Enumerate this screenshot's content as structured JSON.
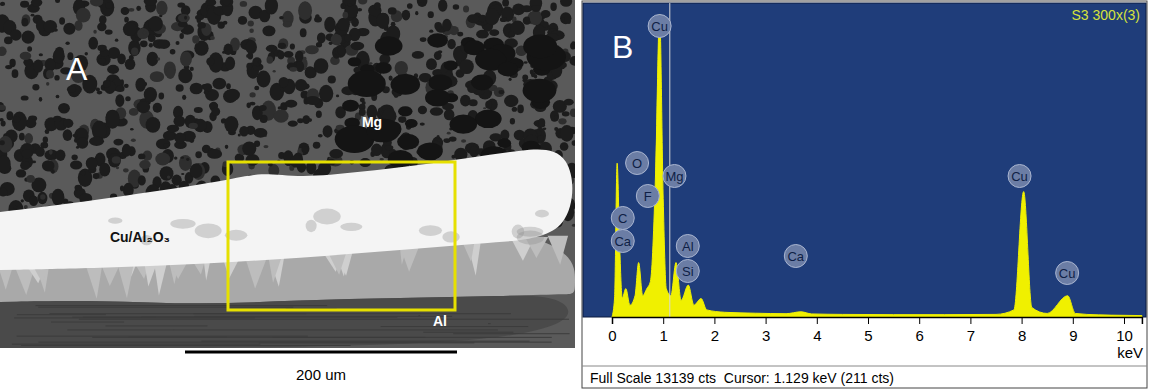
{
  "micrograph": {
    "panel_label": "A",
    "phase_labels": [
      "Mg",
      "Cu/Al₂O₃",
      "Al"
    ],
    "scale_bar": "200 um"
  },
  "chart_data": {
    "type": "area",
    "panel_label": "B",
    "title": "S3 300x(3)",
    "x_label": "keV",
    "x": [
      0,
      0.05,
      0.1,
      0.15,
      0.2,
      0.27,
      0.35,
      0.45,
      0.52,
      0.6,
      0.68,
      0.75,
      0.85,
      0.93,
      1.0,
      1.06,
      1.15,
      1.25,
      1.35,
      1.49,
      1.6,
      1.74,
      1.85,
      2.2,
      2.8,
      3.4,
      3.69,
      3.9,
      4.5,
      5.5,
      6.5,
      7.5,
      7.85,
      8.04,
      8.2,
      8.5,
      8.9,
      9.05,
      9.5,
      10.0,
      10.35
    ],
    "values": [
      0,
      800,
      6500,
      3000,
      800,
      1200,
      500,
      900,
      2300,
      900,
      1200,
      1500,
      6000,
      12800,
      5000,
      1200,
      900,
      2300,
      700,
      1350,
      500,
      780,
      300,
      200,
      160,
      140,
      220,
      130,
      110,
      100,
      100,
      110,
      300,
      5300,
      400,
      150,
      900,
      150,
      90,
      70,
      60
    ],
    "color": "#f0f000",
    "xlim": [
      0,
      10.35
    ],
    "ylim": [
      0,
      13139
    ],
    "xticks": [
      0,
      1,
      2,
      3,
      4,
      5,
      6,
      7,
      8,
      9,
      10
    ],
    "tick_labels": "x",
    "cursor": 1.129,
    "peak_labels": [
      {
        "label": "Cu",
        "x": 0.93,
        "y": 12294
      },
      {
        "label": "O",
        "x": 0.49,
        "y": 6506
      },
      {
        "label": "Mg",
        "x": 1.22,
        "y": 5957
      },
      {
        "label": "F",
        "x": 0.7,
        "y": 5112
      },
      {
        "label": "C",
        "x": 0.21,
        "y": 4183
      },
      {
        "label": "Ca",
        "x": 0.21,
        "y": 3211
      },
      {
        "label": "Al",
        "x": 1.48,
        "y": 3000
      },
      {
        "label": "Si",
        "x": 1.48,
        "y": 1943
      },
      {
        "label": "Ca",
        "x": 3.59,
        "y": 2577
      },
      {
        "label": "Cu",
        "x": 7.96,
        "y": 5957
      },
      {
        "label": "Cu",
        "x": 8.89,
        "y": 1859
      }
    ],
    "footer": "Full Scale 13139 cts  Cursor: 1.129 keV (211 cts)"
  }
}
